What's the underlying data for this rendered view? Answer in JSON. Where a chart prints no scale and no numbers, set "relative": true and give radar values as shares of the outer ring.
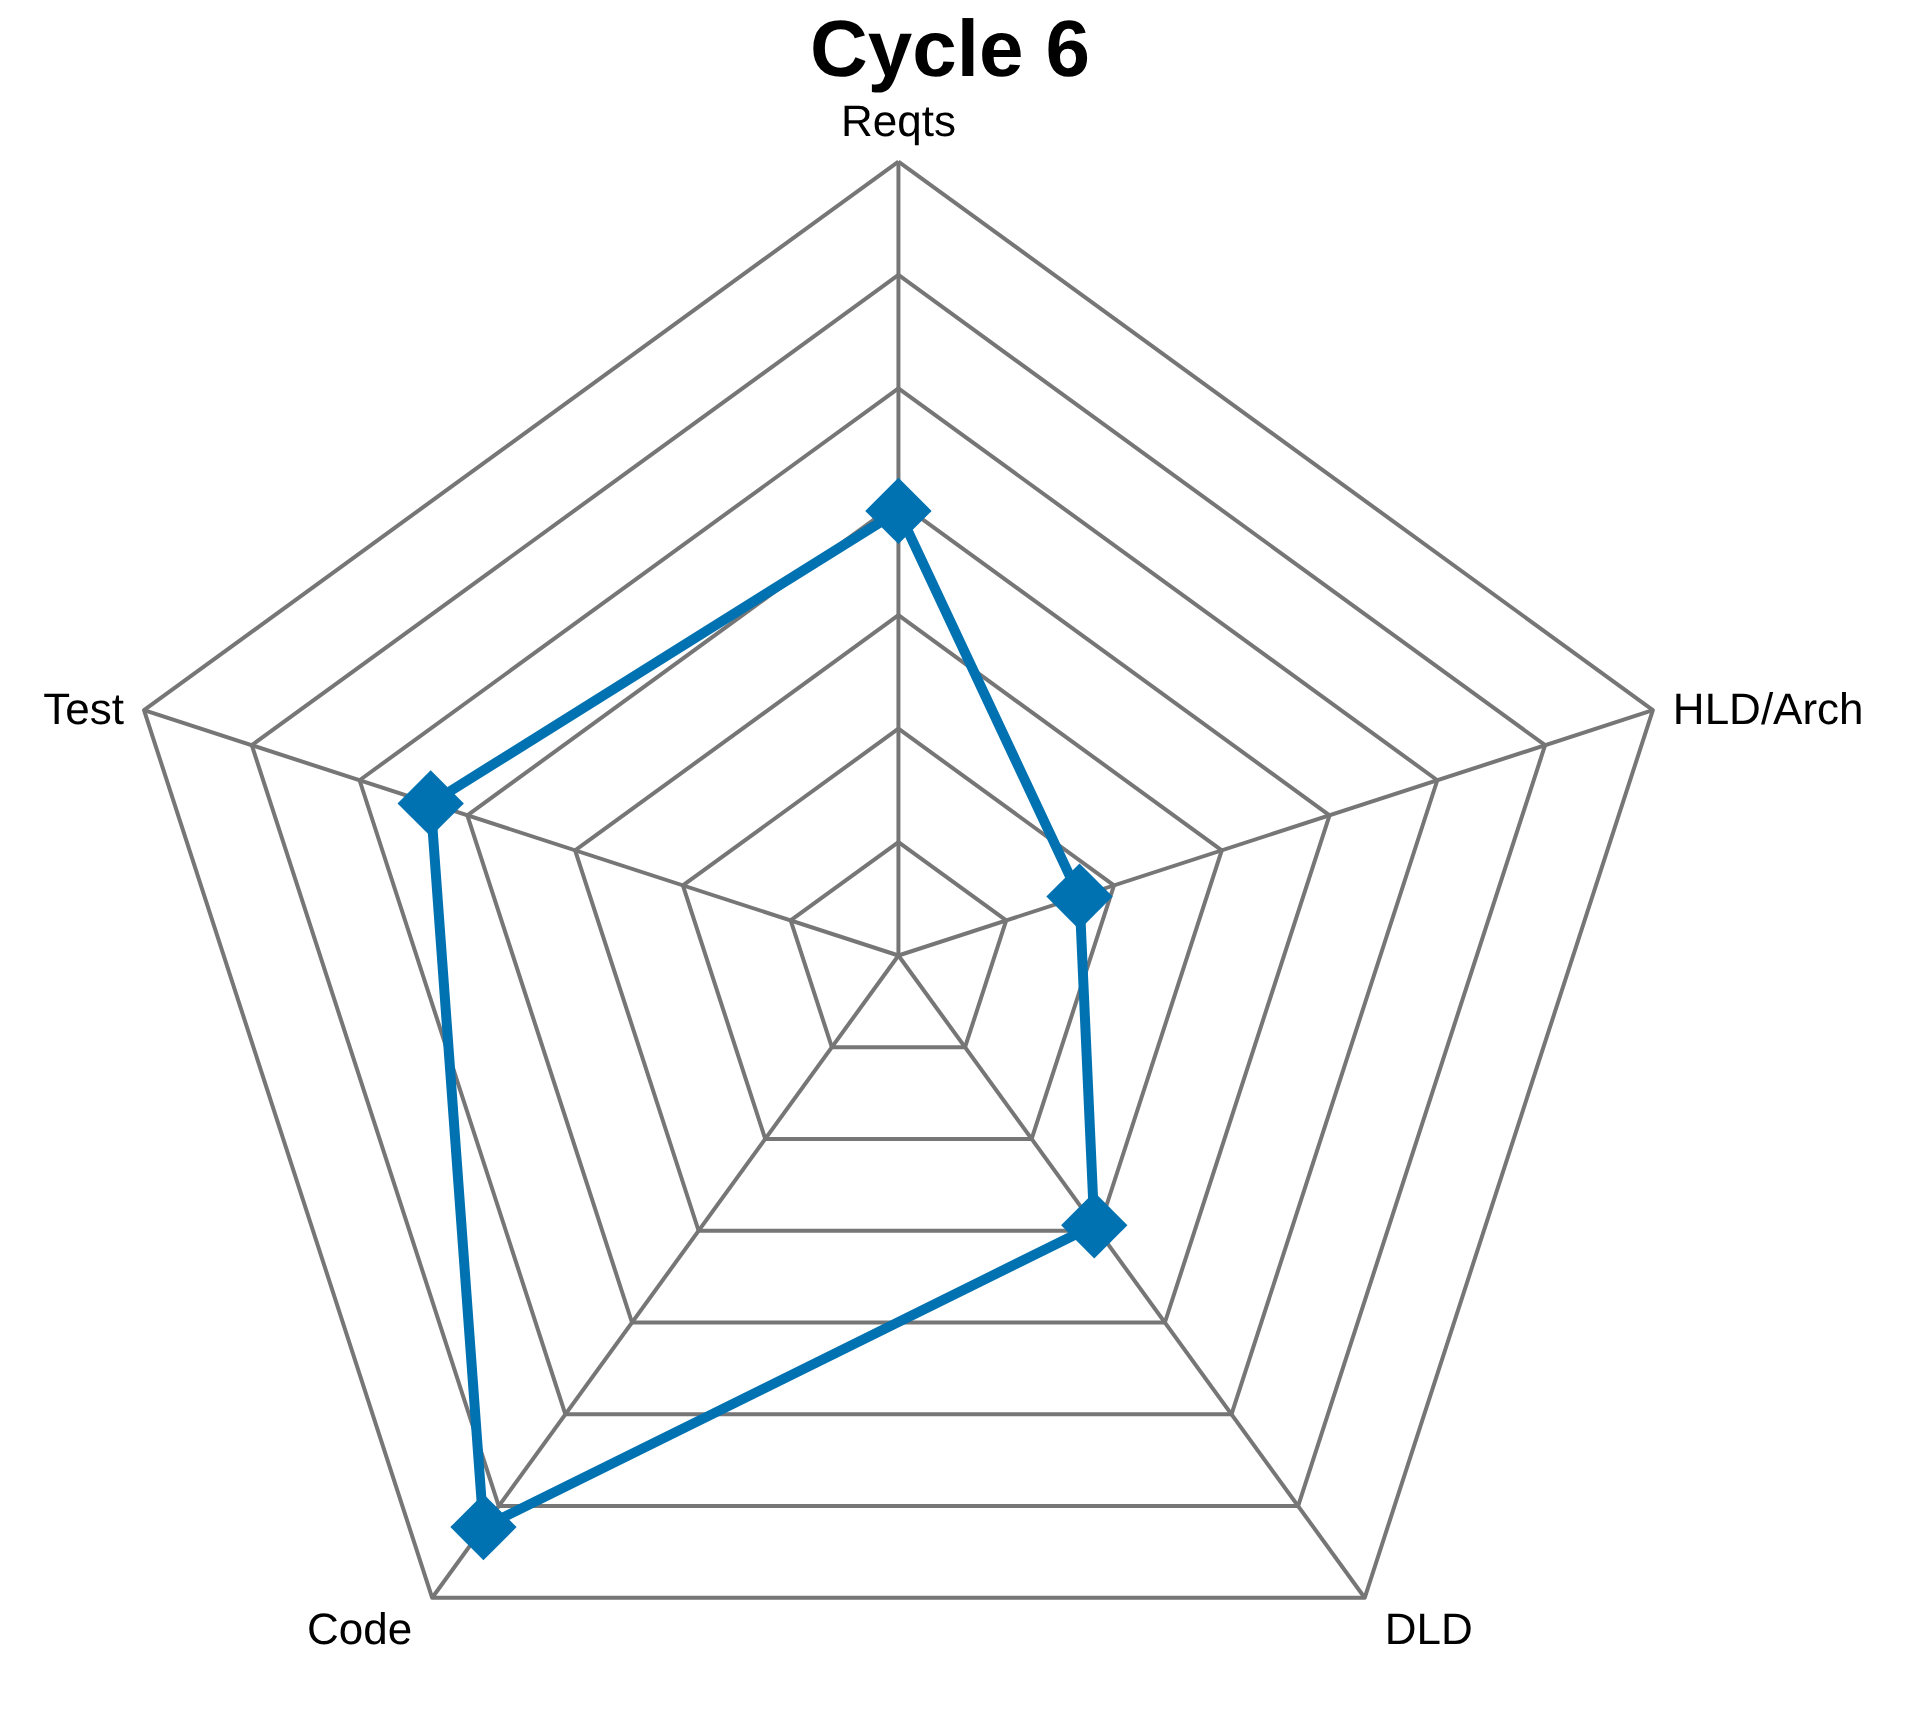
{
  "chart_data": {
    "type": "radar",
    "title": "Cycle 6",
    "categories": [
      "Reqts",
      "HLD/Arch",
      "DLD",
      "Code",
      "Test"
    ],
    "relative": true,
    "grid": true,
    "marker": "diamond",
    "series": [
      {
        "color": "#0072b2",
        "values": [
          0.56,
          0.24,
          0.42,
          0.89,
          0.62
        ]
      }
    ]
  }
}
